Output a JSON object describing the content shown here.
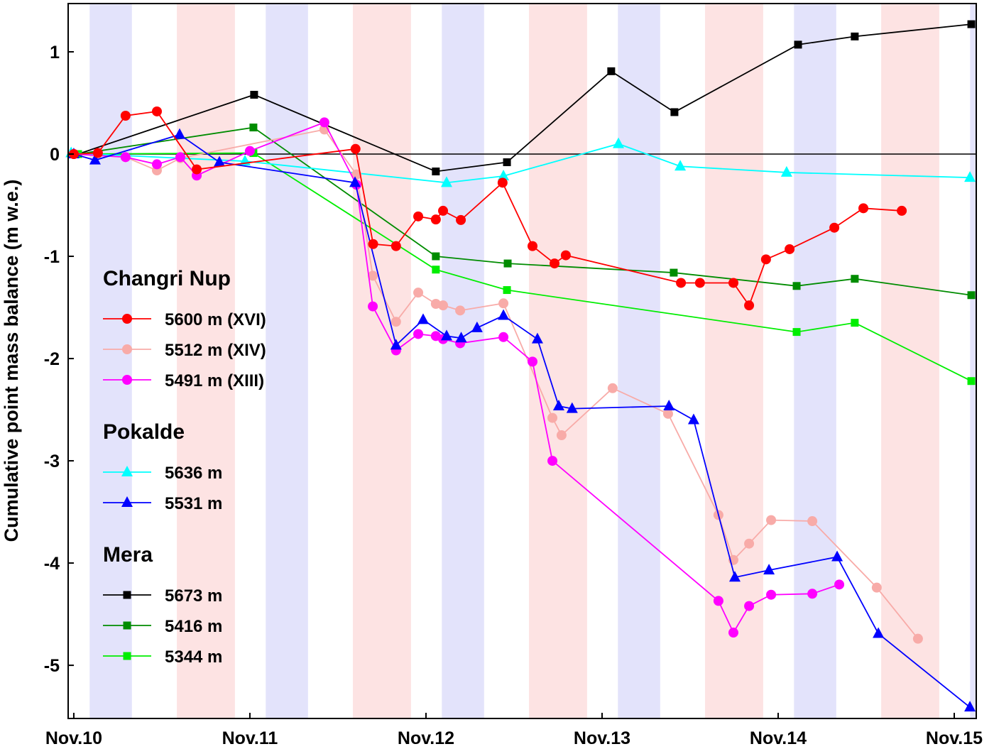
{
  "chart_data": {
    "type": "line",
    "title": "",
    "xlabel": "",
    "ylabel": "Cumulative point mass balance (m w.e.)",
    "xlim": [
      2009.968,
      2015.125
    ],
    "ylim": [
      -5.52,
      1.472
    ],
    "x_ticks": [
      2010,
      2011,
      2012,
      2013,
      2014,
      2015
    ],
    "x_tick_labels": [
      "Nov.10",
      "Nov.11",
      "Nov.12",
      "Nov.13",
      "Nov.14",
      "Nov.15"
    ],
    "y_ticks": [
      1,
      0,
      -1,
      -2,
      -3,
      -4,
      -5
    ],
    "y_tick_labels": [
      "1",
      "0",
      "-1",
      "-2",
      "-3",
      "-4",
      "-5"
    ],
    "zero_line": true,
    "legend_position": "left",
    "shaded_periods": {
      "winter": {
        "color": "#e3e3fb",
        "start_fraction_of_year": 0.09,
        "end_fraction_of_year": 0.33
      },
      "monsoon": {
        "color": "#fde3e3",
        "start_fraction_of_year": 0.585,
        "end_fraction_of_year": 0.915
      }
    },
    "groups": [
      {
        "name": "Changri Nup",
        "series": [
          {
            "name": "5600 m (XVI)",
            "color": "#ff0000",
            "marker": "circle",
            "x": [
              2010.0,
              2010.137,
              2010.294,
              2010.472,
              2010.698,
              2011.6,
              2011.7,
              2011.83,
              2011.956,
              2012.056,
              2012.097,
              2012.198,
              2012.435,
              2012.605,
              2012.73,
              2012.794,
              2013.448,
              2013.556,
              2013.746,
              2013.835,
              2013.931,
              2014.065,
              2014.319,
              2014.484,
              2014.702
            ],
            "y": [
              0,
              0.01,
              0.375,
              0.417,
              -0.15,
              0.05,
              -0.88,
              -0.9,
              -0.61,
              -0.64,
              -0.555,
              -0.645,
              -0.28,
              -0.9,
              -1.07,
              -0.99,
              -1.26,
              -1.26,
              -1.26,
              -1.48,
              -1.03,
              -0.93,
              -0.72,
              -0.53,
              -0.555
            ]
          },
          {
            "name": "5512 m (XIV)",
            "color": "#f8aba8",
            "marker": "circle",
            "x": [
              2010.0,
              2010.294,
              2010.472,
              2010.605,
              2011.423,
              2011.605,
              2011.698,
              2011.83,
              2011.956,
              2012.056,
              2012.097,
              2012.194,
              2012.44,
              2012.718,
              2012.77,
              2013.06,
              2013.375,
              2013.661,
              2013.746,
              2013.835,
              2013.96,
              2014.194,
              2014.56,
              2014.794
            ],
            "y": [
              0,
              -0.03,
              -0.16,
              -0.04,
              0.24,
              -0.2,
              -1.19,
              -1.64,
              -1.355,
              -1.465,
              -1.48,
              -1.53,
              -1.46,
              -2.58,
              -2.75,
              -2.29,
              -2.54,
              -3.53,
              -3.97,
              -3.81,
              -3.58,
              -3.59,
              -4.24,
              -4.74
            ]
          },
          {
            "name": "5491 m (XIII)",
            "color": "#ff00ff",
            "marker": "circle",
            "x": [
              2010.0,
              2010.294,
              2010.472,
              2010.605,
              2010.698,
              2011.0,
              2011.423,
              2011.605,
              2011.698,
              2011.83,
              2011.956,
              2012.056,
              2012.097,
              2012.194,
              2012.44,
              2012.605,
              2012.718,
              2013.661,
              2013.746,
              2013.835,
              2013.96,
              2014.194,
              2014.347
            ],
            "y": [
              0,
              -0.03,
              -0.1,
              -0.03,
              -0.21,
              0.03,
              0.31,
              -0.3,
              -1.49,
              -1.92,
              -1.76,
              -1.78,
              -1.81,
              -1.85,
              -1.79,
              -2.03,
              -3.0,
              -4.37,
              -4.68,
              -4.42,
              -4.31,
              -4.3,
              -4.21
            ]
          }
        ]
      },
      {
        "name": "Pokalde",
        "series": [
          {
            "name": "5636 m",
            "color": "#00ffff",
            "marker": "triangle",
            "x": [
              2009.985,
              2010.972,
              2012.117,
              2012.44,
              2013.093,
              2013.444,
              2014.048,
              2015.089
            ],
            "y": [
              0.01,
              -0.07,
              -0.28,
              -0.215,
              0.1,
              -0.12,
              -0.18,
              -0.23
            ]
          },
          {
            "name": "5531 m",
            "color": "#0000ff",
            "marker": "triangle",
            "x": [
              2010.0,
              2010.121,
              2010.601,
              2010.827,
              2011.597,
              2011.83,
              2011.984,
              2012.117,
              2012.2,
              2012.29,
              2012.44,
              2012.633,
              2012.754,
              2012.83,
              2013.38,
              2013.52,
              2013.754,
              2013.948,
              2014.335,
              2014.569,
              2015.089
            ],
            "y": [
              0,
              -0.06,
              0.19,
              -0.08,
              -0.28,
              -1.87,
              -1.62,
              -1.78,
              -1.8,
              -1.7,
              -1.58,
              -1.81,
              -2.465,
              -2.49,
              -2.465,
              -2.6,
              -4.14,
              -4.07,
              -3.94,
              -4.69,
              -5.41
            ]
          }
        ]
      },
      {
        "name": "Mera",
        "series": [
          {
            "name": "5673 m",
            "color": "#000000",
            "marker": "square",
            "x": [
              2010.024,
              2011.024,
              2012.056,
              2012.46,
              2013.052,
              2013.411,
              2014.113,
              2014.435,
              2015.097
            ],
            "y": [
              0,
              0.58,
              -0.17,
              -0.08,
              0.81,
              0.41,
              1.07,
              1.15,
              1.27
            ]
          },
          {
            "name": "5416 m",
            "color": "#008c00",
            "marker": "square",
            "x": [
              2010.024,
              2011.02,
              2012.056,
              2012.464,
              2013.407,
              2014.105,
              2014.435,
              2015.097
            ],
            "y": [
              0,
              0.26,
              -1.0,
              -1.07,
              -1.16,
              -1.29,
              -1.22,
              -1.38
            ]
          },
          {
            "name": "5344 m",
            "color": "#00ee00",
            "marker": "square",
            "x": [
              2010.024,
              2011.02,
              2012.056,
              2012.46,
              2014.105,
              2014.435,
              2015.097
            ],
            "y": [
              0,
              0.01,
              -1.13,
              -1.33,
              -1.74,
              -1.65,
              -2.22
            ]
          }
        ]
      }
    ]
  }
}
